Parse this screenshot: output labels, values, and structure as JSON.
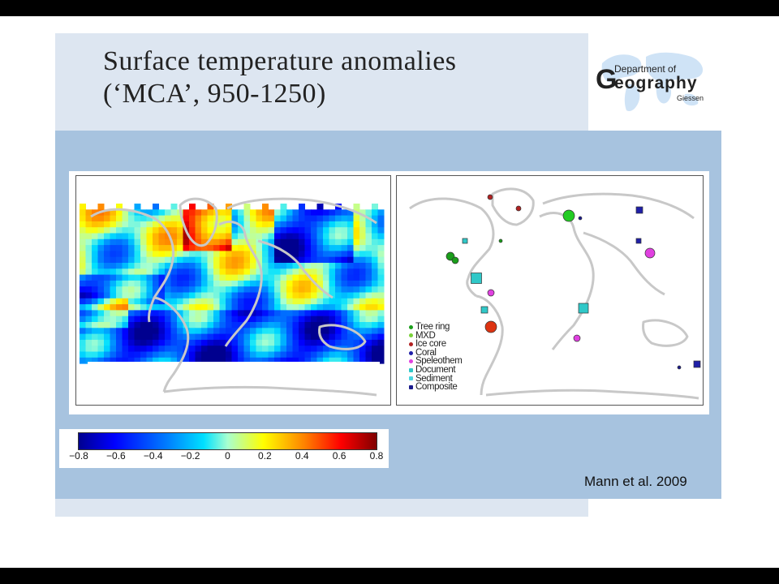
{
  "title": "Surface temperature anomalies\n(‘MCA’, 950-1250)",
  "logo": {
    "line1": "Department of",
    "big_g": "G",
    "line2": "eography",
    "line3": "Giessen"
  },
  "legend": [
    {
      "label": "Tree ring",
      "color": "#1a9e1a"
    },
    {
      "label": "MXD",
      "color": "#7ad13a"
    },
    {
      "label": "Ice core",
      "color": "#b22222"
    },
    {
      "label": "Coral",
      "color": "#1f1fa8"
    },
    {
      "label": "Speleothem",
      "color": "#e040e0"
    },
    {
      "label": "Document",
      "color": "#30c8c8"
    },
    {
      "label": "Sediment",
      "color": "#4ad6e0"
    },
    {
      "label": "Composite",
      "color": "#1a1a8c"
    }
  ],
  "colorbar": {
    "ticks": [
      "−0.8",
      "−0.6",
      "−0.4",
      "−0.2",
      "0",
      "0.2",
      "0.4",
      "0.6",
      "0.8"
    ]
  },
  "citation": "Mann et al. 2009"
}
